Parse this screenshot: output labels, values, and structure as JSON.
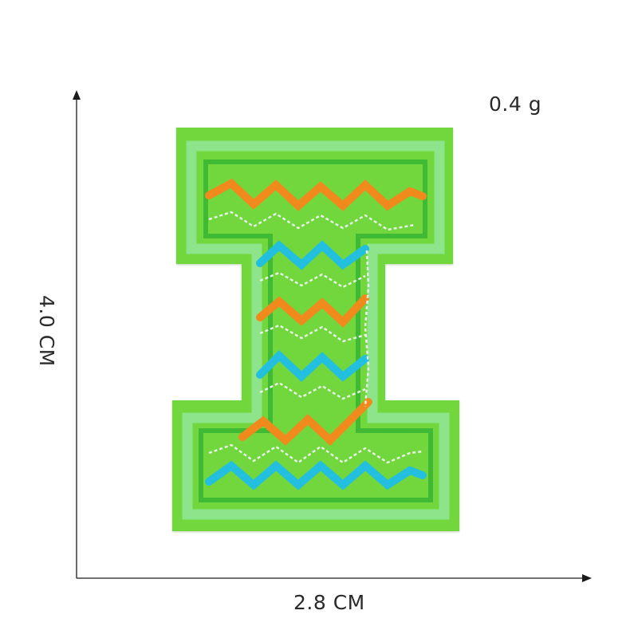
{
  "weight": "0.4 g",
  "dimensions": {
    "width": "2.8 CM",
    "height": "4.0 CM"
  },
  "patch": {
    "letter": "I",
    "colors": {
      "felt": "#72d63c",
      "border_light": "#8ee48a",
      "border_dark": "#3fb935",
      "orange": "#f08a1c",
      "cyan": "#23c0de",
      "white_stitch": "#e6f2e6"
    }
  }
}
